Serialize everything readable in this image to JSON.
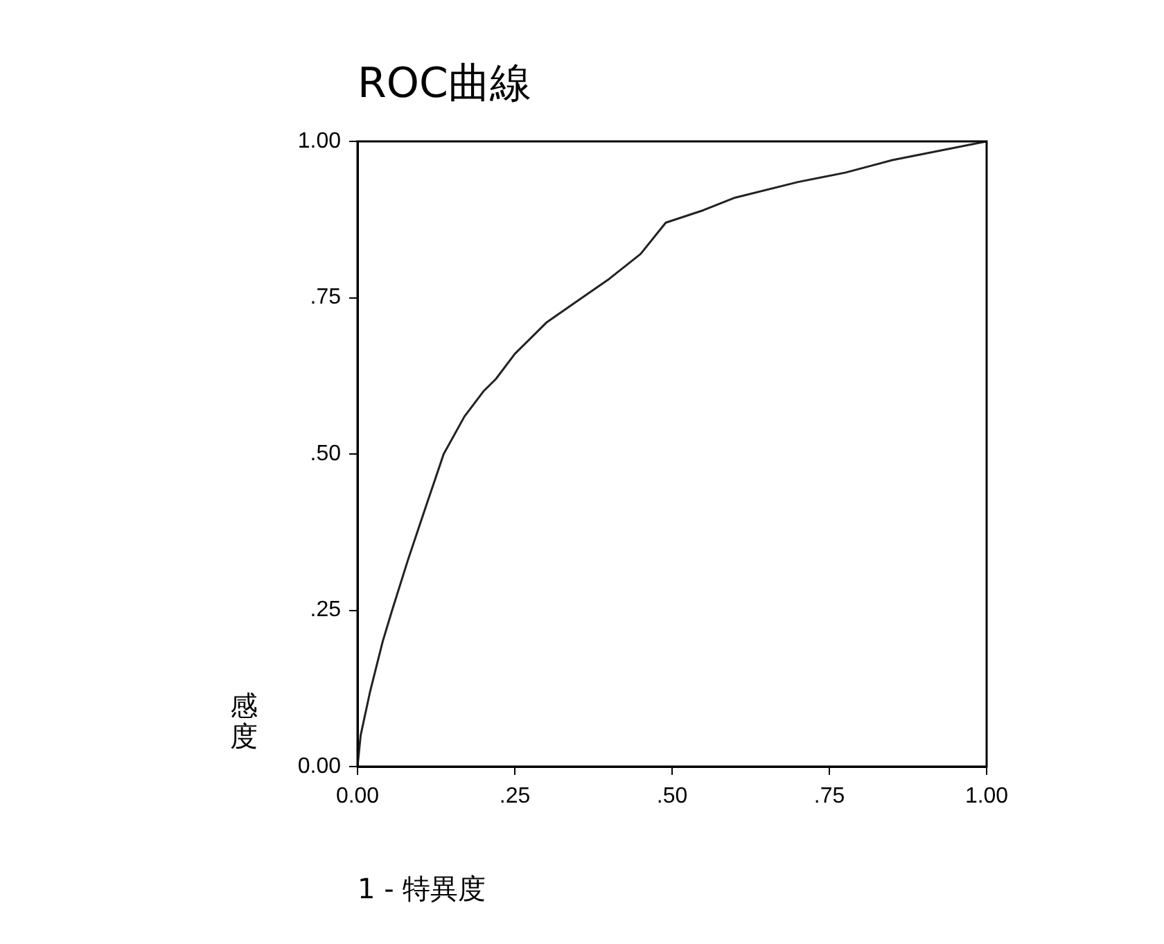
{
  "chart_data": {
    "type": "line",
    "title": "ROC曲線",
    "xlabel": "1 - 特異度",
    "ylabel": "感度",
    "x": [
      0,
      0.005,
      0.02,
      0.04,
      0.055,
      0.08,
      0.11,
      0.137,
      0.17,
      0.2,
      0.22,
      0.25,
      0.3,
      0.357,
      0.4,
      0.45,
      0.49,
      0.55,
      0.6,
      0.7,
      0.775,
      0.85,
      0.9,
      1
    ],
    "series": [
      {
        "color": "#222222",
        "values": [
          0,
          0.05,
          0.12,
          0.2,
          0.25,
          0.33,
          0.42,
          0.5,
          0.56,
          0.6,
          0.62,
          0.66,
          0.71,
          0.75,
          0.78,
          0.82,
          0.87,
          0.89,
          0.91,
          0.935,
          0.95,
          0.97,
          0.98,
          1
        ]
      }
    ],
    "xlim": [
      0,
      1
    ],
    "ylim": [
      0,
      1
    ],
    "xticks": [
      {
        "value": 0,
        "label": "0.00"
      },
      {
        "value": 0.25,
        "label": ".25"
      },
      {
        "value": 0.5,
        "label": ".50"
      },
      {
        "value": 0.75,
        "label": ".75"
      },
      {
        "value": 1,
        "label": "1.00"
      }
    ],
    "yticks": [
      {
        "value": 0,
        "label": "0.00"
      },
      {
        "value": 0.25,
        "label": ".25"
      },
      {
        "value": 0.5,
        "label": ".50"
      },
      {
        "value": 0.75,
        "label": ".75"
      },
      {
        "value": 1,
        "label": "1.00"
      }
    ],
    "grid": false,
    "legend": false,
    "marker": "none",
    "line_style": "solid"
  }
}
